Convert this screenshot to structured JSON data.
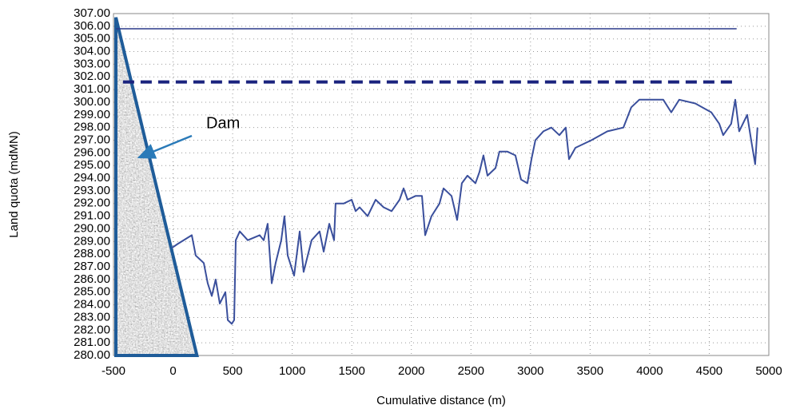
{
  "chart_data": {
    "type": "line",
    "xlabel": "Cumulative distance (m)",
    "ylabel": "Land quota (mdMN)",
    "annotation": "Dam",
    "xlim": [
      -500,
      5000
    ],
    "ylim": [
      280,
      307
    ],
    "xticks": [
      -500,
      0,
      500,
      1000,
      1500,
      2000,
      2500,
      3000,
      3500,
      4000,
      4500,
      5000
    ],
    "yticks": [
      {
        "value": 280,
        "label": "280.00"
      },
      {
        "value": 281,
        "label": "281.00"
      },
      {
        "value": 282,
        "label": "282.00"
      },
      {
        "value": 283,
        "label": "283.00"
      },
      {
        "value": 284,
        "label": "284.00"
      },
      {
        "value": 285,
        "label": "285.00"
      },
      {
        "value": 286,
        "label": "286.00"
      },
      {
        "value": 287,
        "label": "287.00"
      },
      {
        "value": 288,
        "label": "288.00"
      },
      {
        "value": 289,
        "label": "289.00"
      },
      {
        "value": 290,
        "label": "290.00"
      },
      {
        "value": 291,
        "label": "291.00"
      },
      {
        "value": 292,
        "label": "292.00"
      },
      {
        "value": 293,
        "label": "293.00"
      },
      {
        "value": 294,
        "label": "294.00"
      },
      {
        "value": 295,
        "label": "295.00"
      },
      {
        "value": 296,
        "label": "296.00"
      },
      {
        "value": 297,
        "label": "297.00"
      },
      {
        "value": 298,
        "label": "298.00"
      },
      {
        "value": 299,
        "label": "299.00"
      },
      {
        "value": 300,
        "label": "300.00"
      },
      {
        "value": 301,
        "label": "301.00"
      },
      {
        "value": 302,
        "label": "302.00"
      },
      {
        "value": 303,
        "label": "303.00"
      },
      {
        "value": 304,
        "label": "304.00"
      },
      {
        "value": 305,
        "label": "305.00"
      },
      {
        "value": 306,
        "label": "306.00"
      },
      {
        "value": 307,
        "label": "307.00"
      }
    ],
    "grid": true,
    "series": [
      {
        "style": "area",
        "color": "#1f5c99",
        "x": [
          -480,
          -480,
          200
        ],
        "values": [
          280,
          306.7,
          280
        ]
      },
      {
        "style": "solid",
        "color": "#2a3a8a",
        "x": [
          -480,
          4730
        ],
        "values": [
          305.8,
          305.8
        ]
      },
      {
        "style": "dashed",
        "color": "#1a237e",
        "x": [
          -420,
          4730
        ],
        "values": [
          301.6,
          301.6
        ]
      },
      {
        "style": "solid",
        "color": "#3a4f9c",
        "x": [
          -10,
          37,
          157,
          190,
          258,
          291,
          325,
          358,
          392,
          439,
          459,
          493,
          513,
          526,
          560,
          627,
          727,
          761,
          794,
          828,
          861,
          908,
          935,
          962,
          1016,
          1063,
          1096,
          1163,
          1230,
          1264,
          1311,
          1351,
          1364,
          1432,
          1499,
          1532,
          1566,
          1633,
          1700,
          1767,
          1834,
          1901,
          1935,
          1968,
          2035,
          2089,
          2116,
          2169,
          2236,
          2270,
          2337,
          2384,
          2424,
          2471,
          2538,
          2572,
          2605,
          2639,
          2706,
          2739,
          2806,
          2873,
          2920,
          2974,
          3008,
          3041,
          3108,
          3175,
          3242,
          3296,
          3323,
          3377,
          3511,
          3645,
          3779,
          3846,
          3913,
          4114,
          4181,
          4248,
          4383,
          4517,
          4584,
          4617,
          4684,
          4718,
          4751,
          4818,
          4852,
          4885,
          4905
        ],
        "values": [
          288.5,
          288.8,
          289.5,
          287.9,
          287.3,
          285.7,
          284.7,
          286.0,
          284.1,
          285.0,
          282.8,
          282.5,
          282.8,
          289.1,
          289.8,
          289.1,
          289.5,
          289.1,
          290.4,
          285.7,
          287.3,
          289.1,
          291.0,
          287.9,
          286.3,
          289.8,
          286.6,
          289.1,
          289.8,
          288.2,
          290.4,
          289.1,
          292.0,
          292.0,
          292.3,
          291.4,
          291.7,
          291.0,
          292.3,
          291.7,
          291.4,
          292.3,
          293.2,
          292.3,
          292.6,
          292.6,
          289.5,
          291.0,
          292.0,
          293.2,
          292.6,
          290.7,
          293.6,
          294.2,
          293.6,
          294.5,
          295.8,
          294.2,
          294.8,
          296.1,
          296.1,
          295.8,
          293.9,
          293.6,
          295.5,
          297.0,
          297.7,
          298.0,
          297.4,
          298.0,
          295.5,
          296.4,
          297.0,
          297.7,
          298.0,
          299.6,
          300.2,
          300.2,
          299.2,
          300.2,
          299.9,
          299.2,
          298.3,
          297.4,
          298.3,
          300.2,
          297.7,
          299.0,
          297.0,
          295.1,
          298.0
        ]
      }
    ]
  }
}
